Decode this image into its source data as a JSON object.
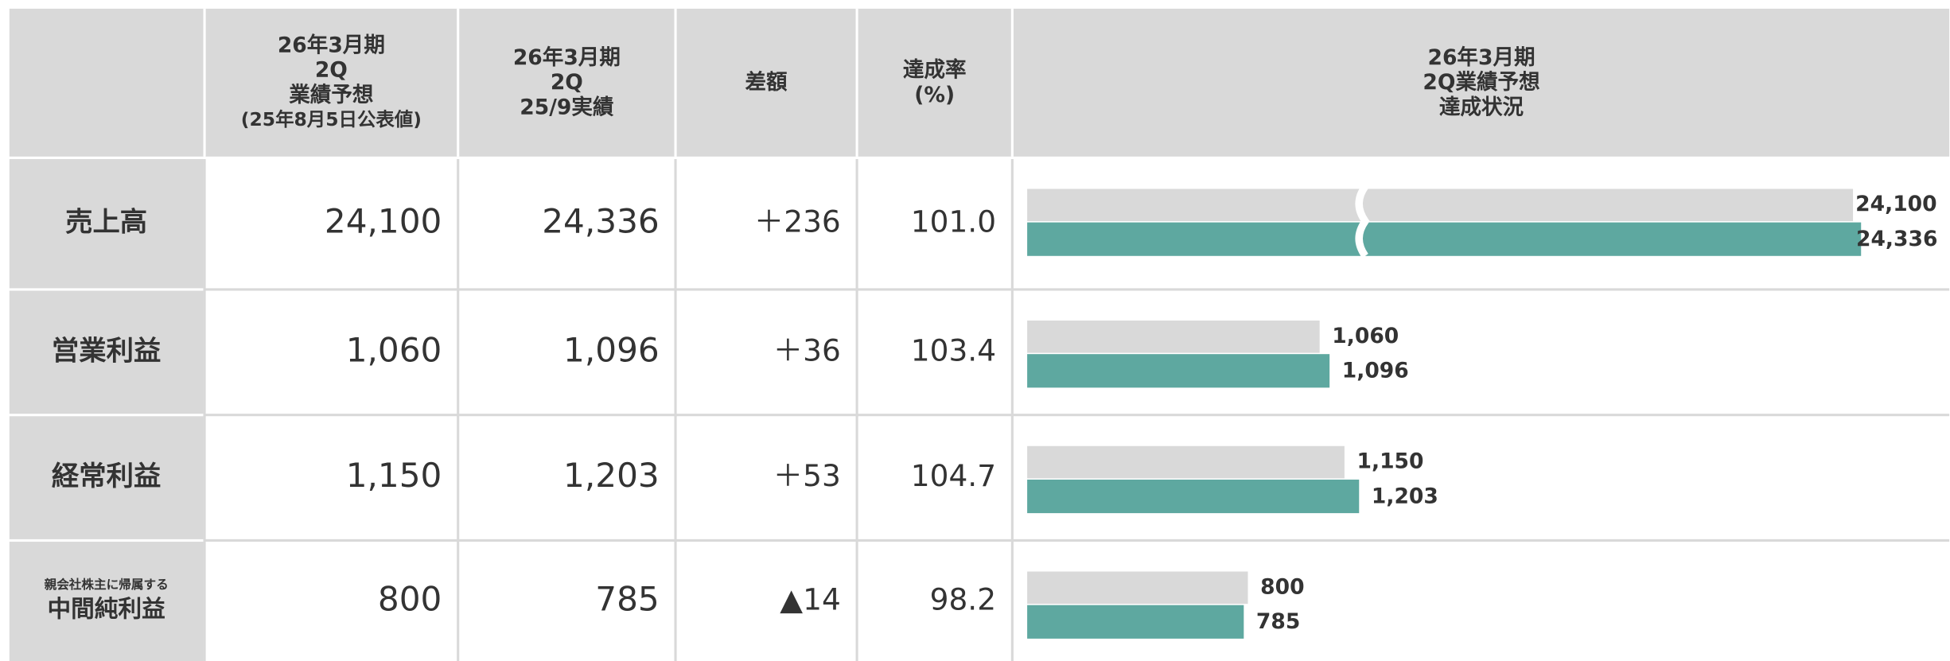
{
  "table": {
    "headers": [
      [
        "26年3月期",
        "2Q",
        "業績予想",
        "(25年8月5日公表値)"
      ],
      [
        "26年3月期",
        "2Q",
        "25/9実績"
      ],
      [
        "差額"
      ],
      [
        "達成率",
        "(%)"
      ],
      [
        "26年3月期",
        "2Q業績予想",
        "達成状況"
      ]
    ],
    "rows": [
      {
        "label": [
          "売上高"
        ],
        "plan": {
          "value": 24100,
          "label": "24,100"
        },
        "actual": {
          "value": 24336,
          "label": "24,336"
        },
        "diff": "＋236",
        "rate": "101.0"
      },
      {
        "label": [
          "営業利益"
        ],
        "plan": {
          "value": 1060,
          "label": "1,060"
        },
        "actual": {
          "value": 1096,
          "label": "1,096"
        },
        "diff": "＋36",
        "rate": "103.4"
      },
      {
        "label": [
          "経常利益"
        ],
        "plan": {
          "value": 1150,
          "label": "1,150"
        },
        "actual": {
          "value": 1203,
          "label": "1,203"
        },
        "diff": "＋53",
        "rate": "104.7"
      },
      {
        "label": [
          "親会社株主に帰属する",
          "中間純利益"
        ],
        "plan": {
          "value": 800,
          "label": "800"
        },
        "actual": {
          "value": 785,
          "label": "785"
        },
        "diff": "▲14",
        "rate": "98.2"
      }
    ],
    "colors": {
      "plan": "#d9d9d9",
      "actual": "#5ea8a0"
    }
  }
}
